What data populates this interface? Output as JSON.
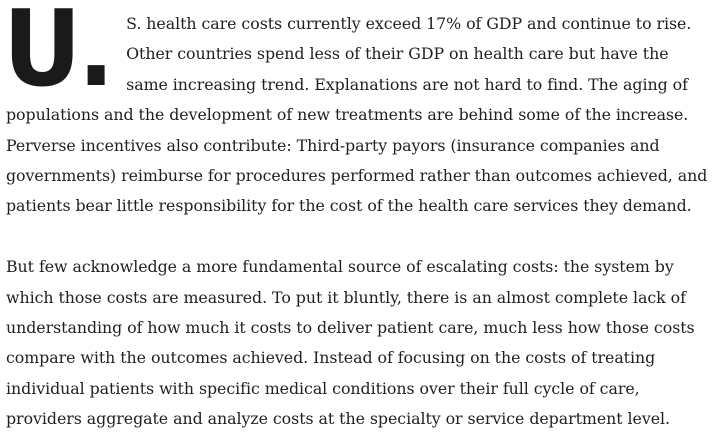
{
  "article": {
    "dropcap": "U.",
    "paragraphs": [
      " S. health care costs currently exceed 17% of GDP and continue to rise. Other countries spend less of their GDP on health care but have the same increasing trend. Explanations are not hard to find. The aging of populations and the development of new treatments are behind some of the increase. Perverse incentives also contribute: Third-party payors (insurance companies and governments) reimburse for procedures performed rather than outcomes achieved, and patients bear little responsibility for the cost of the health care services they demand.",
      "But few acknowledge a more fundamental source of escalating costs: the system by which those costs are measured. To put it bluntly, there is an almost complete lack of understanding of how much it costs to deliver patient care, much less how those costs compare with the outcomes achieved. Instead of focusing on the costs of treating individual patients with specific medical conditions over their full cycle of care, providers aggregate and analyze costs at the specialty or service department level."
    ]
  }
}
